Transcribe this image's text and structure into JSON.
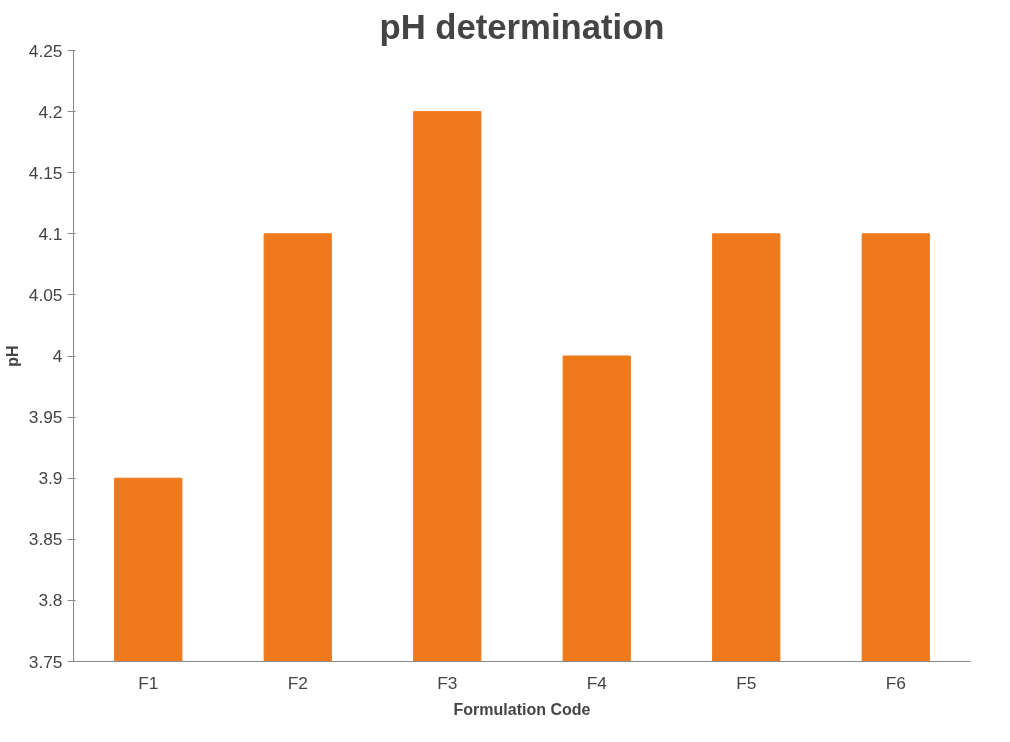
{
  "chart_data": {
    "type": "bar",
    "title": "pH determination",
    "xlabel": "Formulation Code",
    "ylabel": "pH",
    "categories": [
      "F1",
      "F2",
      "F3",
      "F4",
      "F5",
      "F6"
    ],
    "values": [
      3.9,
      4.1,
      4.2,
      4,
      4.1,
      4.1
    ],
    "color": "#ef7a1c",
    "ylim": [
      3.75,
      4.25
    ],
    "yticks": [
      3.75,
      3.8,
      3.85,
      3.9,
      3.95,
      4,
      4.05,
      4.1,
      4.15,
      4.2,
      4.25
    ],
    "grid": false
  }
}
